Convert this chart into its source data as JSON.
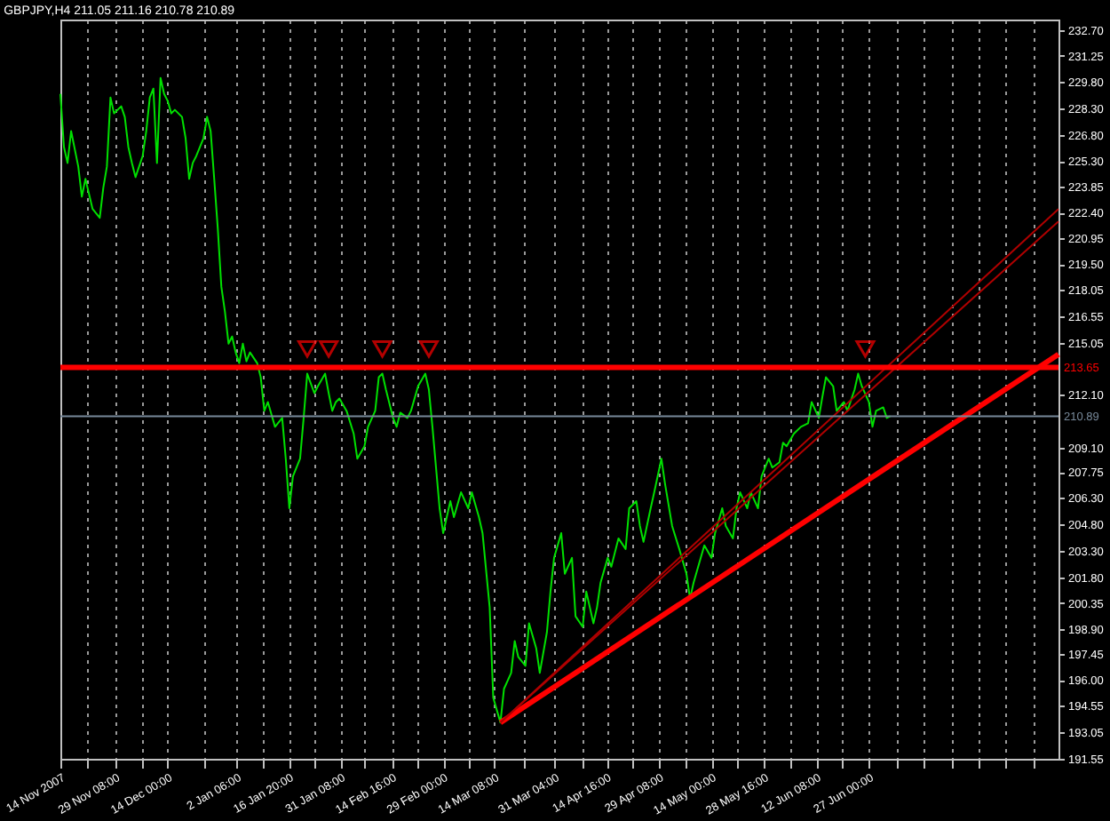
{
  "chart_data": {
    "type": "line",
    "title": "GBPJPY,H4  211.05 211.16 210.78 210.89",
    "xlim": [
      "2007-11-14T00:00",
      "2008-08-19T00:00"
    ],
    "ylim": [
      191.55,
      233.3
    ],
    "yticks": [
      {
        "value": 191.55,
        "label": "191.55"
      },
      {
        "value": 193.05,
        "label": "193.05"
      },
      {
        "value": 194.55,
        "label": "194.55"
      },
      {
        "value": 196.0,
        "label": "196.00"
      },
      {
        "value": 197.45,
        "label": "197.45"
      },
      {
        "value": 198.9,
        "label": "198.90"
      },
      {
        "value": 200.35,
        "label": "200.35"
      },
      {
        "value": 201.8,
        "label": "201.80"
      },
      {
        "value": 203.3,
        "label": "203.30"
      },
      {
        "value": 204.8,
        "label": "204.80"
      },
      {
        "value": 206.3,
        "label": "206.30"
      },
      {
        "value": 207.75,
        "label": "207.75"
      },
      {
        "value": 209.1,
        "label": "209.10"
      },
      {
        "value": 212.1,
        "label": "212.10"
      },
      {
        "value": 215.05,
        "label": "215.05"
      },
      {
        "value": 216.55,
        "label": "216.55"
      },
      {
        "value": 218.05,
        "label": "218.05"
      },
      {
        "value": 219.5,
        "label": "219.50"
      },
      {
        "value": 220.95,
        "label": "220.95"
      },
      {
        "value": 222.4,
        "label": "222.40"
      },
      {
        "value": 223.85,
        "label": "223.85"
      },
      {
        "value": 225.3,
        "label": "225.30"
      },
      {
        "value": 226.8,
        "label": "226.80"
      },
      {
        "value": 228.3,
        "label": "228.30"
      },
      {
        "value": 229.8,
        "label": "229.80"
      },
      {
        "value": 231.25,
        "label": "231.25"
      },
      {
        "value": 232.7,
        "label": "232.70"
      }
    ],
    "xticks": [
      {
        "value": "2007-11-14T00:00",
        "label": "14 Nov 2007"
      },
      {
        "value": "2007-11-21T16:00",
        "label": null
      },
      {
        "value": "2007-11-29T08:00",
        "label": "29 Nov 08:00"
      },
      {
        "value": "2007-12-06T16:00",
        "label": null
      },
      {
        "value": "2007-12-14T00:00",
        "label": "14 Dec 00:00"
      },
      {
        "value": "2007-12-24T03:00",
        "label": null
      },
      {
        "value": "2008-01-02T06:00",
        "label": "2 Jan 06:00"
      },
      {
        "value": "2008-01-09T13:00",
        "label": null
      },
      {
        "value": "2008-01-16T20:00",
        "label": "16 Jan 20:00"
      },
      {
        "value": "2008-01-24T02:00",
        "label": null
      },
      {
        "value": "2008-01-31T08:00",
        "label": "31 Jan 08:00"
      },
      {
        "value": "2008-02-07T00:00",
        "label": null
      },
      {
        "value": "2008-02-14T16:00",
        "label": "14 Feb 16:00"
      },
      {
        "value": "2008-02-21T20:00",
        "label": null
      },
      {
        "value": "2008-02-29T00:00",
        "label": "29 Feb 00:00"
      },
      {
        "value": "2008-03-07T04:00",
        "label": null
      },
      {
        "value": "2008-03-14T08:00",
        "label": "14 Mar 08:00"
      },
      {
        "value": "2008-03-22T18:00",
        "label": null
      },
      {
        "value": "2008-03-31T04:00",
        "label": "31 Mar 04:00"
      },
      {
        "value": "2008-04-07T22:00",
        "label": null
      },
      {
        "value": "2008-04-14T16:00",
        "label": "14 Apr 16:00"
      },
      {
        "value": "2008-04-22T00:00",
        "label": null
      },
      {
        "value": "2008-04-29T08:00",
        "label": "29 Apr 08:00"
      },
      {
        "value": "2008-05-06T16:00",
        "label": null
      },
      {
        "value": "2008-05-14T00:00",
        "label": "14 May 00:00"
      },
      {
        "value": "2008-05-21T08:00",
        "label": null
      },
      {
        "value": "2008-05-28T16:00",
        "label": "28 May 16:00"
      },
      {
        "value": "2008-06-05T00:00",
        "label": null
      },
      {
        "value": "2008-06-12T08:00",
        "label": "12 Jun 08:00"
      },
      {
        "value": "2008-06-19T16:00",
        "label": null
      },
      {
        "value": "2008-06-27T00:00",
        "label": "27 Jun 00:00"
      },
      {
        "value": "2008-07-04T16:00",
        "label": null
      },
      {
        "value": "2008-07-12T08:00",
        "label": null
      },
      {
        "value": "2008-07-20T00:00",
        "label": null
      },
      {
        "value": "2008-07-27T16:00",
        "label": null
      },
      {
        "value": "2008-08-04T08:00",
        "label": null
      },
      {
        "value": "2008-08-12T00:00",
        "label": null
      }
    ],
    "grid": "x",
    "ref_lines": [
      {
        "axis": "y",
        "value": 213.65,
        "label": "213.65",
        "color": "#ff0000"
      },
      {
        "axis": "y",
        "value": 210.89,
        "label": "210.89",
        "color": "#778899"
      }
    ],
    "series": [
      {
        "type": "line",
        "color": "#00e000",
        "x": [
          "2007-11-14",
          "2007-11-15",
          "2007-11-16",
          "2007-11-17",
          "2007-11-19",
          "2007-11-20",
          "2007-11-21",
          "2007-11-23",
          "2007-11-25",
          "2007-11-26",
          "2007-11-27",
          "2007-11-28",
          "2007-11-29",
          "2007-12-01",
          "2007-12-02",
          "2007-12-03",
          "2007-12-04",
          "2007-12-05",
          "2007-12-07",
          "2007-12-08",
          "2007-12-09",
          "2007-12-10",
          "2007-12-11",
          "2007-12-12",
          "2007-12-13",
          "2007-12-14",
          "2007-12-15",
          "2007-12-16",
          "2007-12-18",
          "2007-12-19",
          "2007-12-20",
          "2007-12-21",
          "2007-12-22",
          "2007-12-24",
          "2007-12-25",
          "2007-12-26",
          "2007-12-27",
          "2007-12-28",
          "2007-12-29",
          "2007-12-30",
          "2007-12-31",
          "2008-01-01",
          "2008-01-02",
          "2008-01-03",
          "2008-01-04",
          "2008-01-05",
          "2008-01-06",
          "2008-01-08",
          "2008-01-09",
          "2008-01-10",
          "2008-01-11",
          "2008-01-13",
          "2008-01-15",
          "2008-01-16",
          "2008-01-17",
          "2008-01-18",
          "2008-01-20",
          "2008-01-21",
          "2008-01-22",
          "2008-01-24",
          "2008-01-25",
          "2008-01-27",
          "2008-01-28",
          "2008-01-29",
          "2008-01-30",
          "2008-01-31",
          "2008-02-02",
          "2008-02-04",
          "2008-02-05",
          "2008-02-07",
          "2008-02-08",
          "2008-02-10",
          "2008-02-11",
          "2008-02-12",
          "2008-02-13",
          "2008-02-15",
          "2008-02-16",
          "2008-02-17",
          "2008-02-19",
          "2008-02-20",
          "2008-02-22",
          "2008-02-24",
          "2008-02-25",
          "2008-02-26",
          "2008-02-27",
          "2008-02-28",
          "2008-02-29",
          "2008-03-02",
          "2008-03-03",
          "2008-03-05",
          "2008-03-07",
          "2008-03-08",
          "2008-03-10",
          "2008-03-11",
          "2008-03-13",
          "2008-03-14",
          "2008-03-16",
          "2008-03-17",
          "2008-03-19",
          "2008-03-20",
          "2008-03-21",
          "2008-03-23",
          "2008-03-24",
          "2008-03-26",
          "2008-03-27",
          "2008-03-29",
          "2008-03-30",
          "2008-03-31",
          "2008-04-02",
          "2008-04-03",
          "2008-04-05",
          "2008-04-06",
          "2008-04-08",
          "2008-04-09",
          "2008-04-11",
          "2008-04-12",
          "2008-04-13",
          "2008-04-15",
          "2008-04-16",
          "2008-04-18",
          "2008-04-20",
          "2008-04-21",
          "2008-04-23",
          "2008-04-24",
          "2008-04-25",
          "2008-04-27",
          "2008-04-28",
          "2008-04-30",
          "2008-05-01",
          "2008-05-03",
          "2008-05-05",
          "2008-05-07",
          "2008-05-08",
          "2008-05-09",
          "2008-05-11",
          "2008-05-12",
          "2008-05-14",
          "2008-05-15",
          "2008-05-17",
          "2008-05-18",
          "2008-05-20",
          "2008-05-21",
          "2008-05-22",
          "2008-05-24",
          "2008-05-25",
          "2008-05-27",
          "2008-05-28",
          "2008-05-30",
          "2008-05-31",
          "2008-06-02",
          "2008-06-03",
          "2008-06-04",
          "2008-06-06",
          "2008-06-08",
          "2008-06-10",
          "2008-06-11",
          "2008-06-13",
          "2008-06-14",
          "2008-06-15",
          "2008-06-17",
          "2008-06-18",
          "2008-06-20",
          "2008-06-21",
          "2008-06-23",
          "2008-06-24",
          "2008-06-25",
          "2008-06-27",
          "2008-06-28",
          "2008-06-29",
          "2008-07-01",
          "2008-07-02",
          "2008-07-03"
        ],
        "values": [
          229.1,
          226.1,
          225.2,
          227.0,
          225.0,
          223.3,
          224.3,
          222.6,
          222.1,
          223.8,
          225.0,
          228.9,
          228.0,
          228.4,
          227.8,
          226.1,
          225.2,
          224.4,
          225.6,
          227.0,
          228.9,
          229.4,
          225.2,
          230.0,
          229.1,
          228.7,
          228.0,
          228.2,
          227.8,
          226.6,
          224.3,
          225.2,
          225.6,
          226.6,
          227.8,
          227.0,
          224.3,
          221.5,
          218.2,
          216.8,
          215.0,
          215.4,
          214.5,
          213.9,
          215.0,
          214.0,
          214.5,
          213.9,
          213.1,
          211.2,
          211.7,
          210.3,
          210.8,
          208.5,
          205.7,
          207.5,
          208.5,
          210.8,
          213.3,
          212.2,
          212.6,
          213.3,
          212.2,
          211.2,
          211.7,
          211.9,
          211.2,
          209.9,
          208.5,
          209.2,
          210.3,
          211.2,
          213.1,
          213.3,
          212.4,
          210.8,
          210.3,
          211.1,
          210.8,
          211.2,
          212.6,
          213.3,
          212.4,
          210.3,
          208.0,
          205.7,
          204.3,
          206.1,
          205.2,
          206.6,
          205.7,
          206.6,
          205.2,
          204.3,
          200.1,
          195.0,
          193.6,
          195.5,
          196.4,
          198.2,
          197.3,
          196.8,
          199.2,
          197.8,
          196.4,
          198.7,
          201.0,
          202.9,
          204.3,
          202.0,
          202.9,
          199.6,
          199.0,
          201.0,
          199.2,
          200.1,
          201.5,
          202.9,
          202.4,
          204.0,
          203.4,
          205.7,
          206.1,
          204.7,
          203.8,
          205.7,
          206.6,
          208.5,
          207.1,
          204.7,
          203.4,
          202.0,
          200.6,
          201.5,
          202.9,
          203.6,
          202.9,
          204.3,
          205.7,
          204.7,
          204.0,
          205.7,
          206.6,
          205.7,
          206.6,
          205.7,
          207.5,
          208.5,
          208.0,
          208.3,
          209.4,
          209.2,
          209.9,
          210.3,
          210.5,
          211.7,
          210.8,
          212.0,
          213.1,
          212.6,
          211.2,
          211.7,
          211.2,
          212.4,
          213.3,
          212.6,
          211.7,
          210.3,
          211.2,
          211.4,
          210.8,
          210.9
        ]
      },
      {
        "type": "line",
        "color": "#ff0000",
        "x": [
          "2008-03-16",
          "2008-08-19"
        ],
        "values": [
          193.6,
          214.4
        ]
      },
      {
        "type": "line",
        "color": "#b00000",
        "x": [
          "2008-03-16",
          "2008-08-19"
        ],
        "values": [
          193.6,
          222.6
        ]
      },
      {
        "type": "line",
        "color": "#b00000",
        "x": [
          "2008-03-16",
          "2008-08-19"
        ],
        "values": [
          193.6,
          221.9
        ]
      },
      {
        "type": "scatter",
        "marker": "triangle",
        "color": "#ff0000",
        "x": [
          "2008-01-22T00:00",
          "2008-01-28T00:00",
          "2008-02-12T00:00",
          "2008-02-25T00:00",
          "2008-06-26T00:00"
        ],
        "values": [
          214.7,
          214.7,
          214.7,
          214.7,
          214.7
        ]
      }
    ]
  }
}
